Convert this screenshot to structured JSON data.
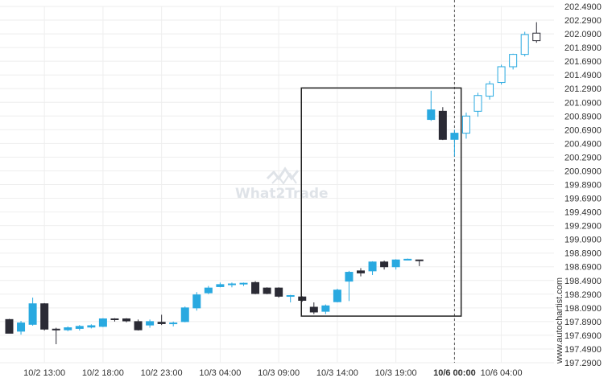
{
  "watermark": {
    "text": "What2Trade"
  },
  "side_label": "www.autochartist.com",
  "colors": {
    "up_fill": "#29a9e0",
    "down_fill": "#2b2b35",
    "recent_up_fill": "#ffffff",
    "recent_up_stroke": "#29a9e0",
    "last_candle_stroke": "#2b2b35",
    "box_stroke": "#222222",
    "grid": "#eeeeee",
    "dashed_line": "#555555"
  },
  "chart_data": {
    "type": "candlestick",
    "title": "",
    "xlabel": "",
    "ylabel": "",
    "ylim": [
      197.29,
      202.49
    ],
    "grid": true,
    "y_ticks": [
      "202.4900",
      "202.2900",
      "202.0900",
      "201.8900",
      "201.6900",
      "201.4900",
      "201.2900",
      "201.0900",
      "200.8900",
      "200.6900",
      "200.4900",
      "200.2900",
      "200.0900",
      "199.8900",
      "199.6900",
      "199.4900",
      "199.2900",
      "199.0900",
      "198.8900",
      "198.6900",
      "198.4900",
      "198.2900",
      "198.0900",
      "197.8900",
      "197.6900",
      "197.4900",
      "197.2900"
    ],
    "x_ticks": [
      {
        "label": "10/2 13:00",
        "index": 3,
        "bold": false
      },
      {
        "label": "10/2 18:00",
        "index": 8,
        "bold": false
      },
      {
        "label": "10/2 23:00",
        "index": 13,
        "bold": false
      },
      {
        "label": "10/3 04:00",
        "index": 18,
        "bold": false
      },
      {
        "label": "10/3 09:00",
        "index": 23,
        "bold": false
      },
      {
        "label": "10/3 14:00",
        "index": 28,
        "bold": false
      },
      {
        "label": "10/3 19:00",
        "index": 33,
        "bold": false
      },
      {
        "label": "10/6 00:00",
        "index": 38,
        "bold": true
      },
      {
        "label": "10/6 04:00",
        "index": 42,
        "bold": false
      }
    ],
    "vertical_marker_index": 38,
    "pattern_box": {
      "from_index": 25,
      "to_index": 38.5,
      "top": 201.3,
      "bottom": 197.97
    },
    "candles": [
      {
        "o": 197.92,
        "h": 197.93,
        "l": 197.72,
        "c": 197.72
      },
      {
        "o": 197.75,
        "h": 197.9,
        "l": 197.7,
        "c": 197.87
      },
      {
        "o": 197.85,
        "h": 198.24,
        "l": 197.83,
        "c": 198.15
      },
      {
        "o": 198.15,
        "h": 198.16,
        "l": 197.76,
        "c": 197.78
      },
      {
        "o": 197.78,
        "h": 197.8,
        "l": 197.56,
        "c": 197.77
      },
      {
        "o": 197.77,
        "h": 197.82,
        "l": 197.75,
        "c": 197.8
      },
      {
        "o": 197.79,
        "h": 197.84,
        "l": 197.76,
        "c": 197.82
      },
      {
        "o": 197.81,
        "h": 197.85,
        "l": 197.79,
        "c": 197.83
      },
      {
        "o": 197.82,
        "h": 197.94,
        "l": 197.81,
        "c": 197.93
      },
      {
        "o": 197.93,
        "h": 197.94,
        "l": 197.89,
        "c": 197.92
      },
      {
        "o": 197.93,
        "h": 197.94,
        "l": 197.88,
        "c": 197.9
      },
      {
        "o": 197.89,
        "h": 197.92,
        "l": 197.76,
        "c": 197.77
      },
      {
        "o": 197.84,
        "h": 197.92,
        "l": 197.8,
        "c": 197.89
      },
      {
        "o": 197.88,
        "h": 197.99,
        "l": 197.84,
        "c": 197.86
      },
      {
        "o": 197.86,
        "h": 197.89,
        "l": 197.82,
        "c": 197.87
      },
      {
        "o": 197.89,
        "h": 198.11,
        "l": 197.88,
        "c": 198.09
      },
      {
        "o": 198.09,
        "h": 198.32,
        "l": 198.05,
        "c": 198.28
      },
      {
        "o": 198.31,
        "h": 198.41,
        "l": 198.29,
        "c": 198.38
      },
      {
        "o": 198.4,
        "h": 198.46,
        "l": 198.39,
        "c": 198.43
      },
      {
        "o": 198.43,
        "h": 198.46,
        "l": 198.39,
        "c": 198.44
      },
      {
        "o": 198.44,
        "h": 198.46,
        "l": 198.41,
        "c": 198.45
      },
      {
        "o": 198.46,
        "h": 198.48,
        "l": 198.29,
        "c": 198.3
      },
      {
        "o": 198.38,
        "h": 198.39,
        "l": 198.29,
        "c": 198.3
      },
      {
        "o": 198.38,
        "h": 198.39,
        "l": 198.24,
        "c": 198.26
      },
      {
        "o": 198.26,
        "h": 198.28,
        "l": 198.17,
        "c": 198.27
      },
      {
        "o": 198.25,
        "h": 198.26,
        "l": 198.18,
        "c": 198.2
      },
      {
        "o": 198.1,
        "h": 198.17,
        "l": 198.0,
        "c": 198.03
      },
      {
        "o": 198.04,
        "h": 198.14,
        "l": 198.0,
        "c": 198.12
      },
      {
        "o": 198.18,
        "h": 198.37,
        "l": 198.17,
        "c": 198.35
      },
      {
        "o": 198.48,
        "h": 198.63,
        "l": 198.19,
        "c": 198.61
      },
      {
        "o": 198.63,
        "h": 198.67,
        "l": 198.55,
        "c": 198.6
      },
      {
        "o": 198.63,
        "h": 198.77,
        "l": 198.57,
        "c": 198.76
      },
      {
        "o": 198.76,
        "h": 198.78,
        "l": 198.65,
        "c": 198.69
      },
      {
        "o": 198.69,
        "h": 198.8,
        "l": 198.65,
        "c": 198.79
      },
      {
        "o": 198.8,
        "h": 198.81,
        "l": 198.79,
        "c": 198.8
      },
      {
        "o": 198.79,
        "h": 198.79,
        "l": 198.7,
        "c": 198.78
      },
      {
        "o": 200.84,
        "h": 201.26,
        "l": 200.82,
        "c": 200.98
      },
      {
        "o": 200.96,
        "h": 201.02,
        "l": 200.54,
        "c": 200.55
      },
      {
        "o": 200.55,
        "h": 200.69,
        "l": 200.3,
        "c": 200.64
      },
      {
        "o": 200.64,
        "h": 200.94,
        "l": 200.56,
        "c": 200.89
      },
      {
        "o": 200.96,
        "h": 201.23,
        "l": 200.88,
        "c": 201.19
      },
      {
        "o": 201.18,
        "h": 201.4,
        "l": 201.13,
        "c": 201.36
      },
      {
        "o": 201.38,
        "h": 201.64,
        "l": 201.35,
        "c": 201.61
      },
      {
        "o": 201.61,
        "h": 201.8,
        "l": 201.57,
        "c": 201.79
      },
      {
        "o": 201.79,
        "h": 202.12,
        "l": 201.76,
        "c": 202.08
      },
      {
        "o": 201.99,
        "h": 202.26,
        "l": 201.96,
        "c": 202.1
      }
    ]
  }
}
